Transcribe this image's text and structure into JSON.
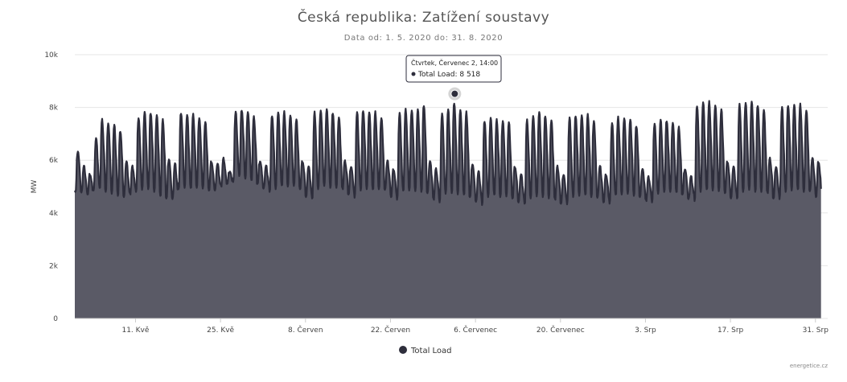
{
  "header": {
    "title": "Česká republika: Zatížení soustavy",
    "subtitle": "Data od: 1. 5. 2020 do: 31. 8. 2020"
  },
  "credit": "energetice.cz",
  "legend": {
    "label": "Total Load"
  },
  "tooltip": {
    "line1": "Čtvrtek, Červenec 2, 14:00",
    "line2": "Total Load: 8 518"
  },
  "colors": {
    "series_fill": "#5a5a66",
    "series_line": "#2e2e3c",
    "grid": "#e6e6e6",
    "axis": "#cccccc"
  },
  "chart_data": {
    "type": "area",
    "title": "Česká republika: Zatížení soustavy",
    "subtitle": "Data od: 1. 5. 2020 do: 31. 8. 2020",
    "ylabel": "MW",
    "ylim": [
      0,
      10000
    ],
    "y_ticks": [
      0,
      2000,
      4000,
      6000,
      8000,
      10000
    ],
    "y_tick_labels": [
      "0",
      "2k",
      "4k",
      "6k",
      "8k",
      "10k"
    ],
    "x_start": "2020-05-01",
    "x_end": "2020-08-31",
    "x_ticks": [
      "2020-05-11",
      "2020-05-25",
      "2020-06-08",
      "2020-06-22",
      "2020-07-06",
      "2020-07-20",
      "2020-08-03",
      "2020-08-17",
      "2020-08-31"
    ],
    "x_tick_labels": [
      "11. Kvě",
      "25. Kvě",
      "8. Červen",
      "22. Červen",
      "6. Červenec",
      "20. Červenec",
      "3. Srp",
      "17. Srp",
      "31. Srp"
    ],
    "legend": "bottom-center",
    "grid": true,
    "highlight": {
      "date": "2020-07-02",
      "hour": 14,
      "value": 8518
    },
    "series": [
      {
        "name": "Total Load",
        "daily_min": [
          4800,
          4750,
          4700,
          4850,
          4900,
          4800,
          4700,
          4650,
          4600,
          4700,
          4800,
          4850,
          4900,
          4800,
          4600,
          4550,
          4500,
          4900,
          4950,
          4900,
          4950,
          4900,
          4850,
          4850,
          5000,
          5100,
          5150,
          5400,
          5300,
          5200,
          5100,
          4900,
          4800,
          4900,
          5000,
          5000,
          5000,
          4900,
          4600,
          4500,
          4900,
          5000,
          4950,
          4950,
          4900,
          4700,
          4550,
          4850,
          4900,
          4850,
          4900,
          4850,
          4600,
          4500,
          4800,
          4850,
          4800,
          4800,
          4750,
          4500,
          4400,
          4700,
          4750,
          4700,
          4650,
          4600,
          4400,
          4300,
          4600,
          4650,
          4600,
          4600,
          4550,
          4400,
          4300,
          4550,
          4600,
          4600,
          4550,
          4500,
          4350,
          4300,
          4600,
          4650,
          4650,
          4600,
          4550,
          4400,
          4350,
          4650,
          4700,
          4700,
          4650,
          4600,
          4450,
          4400,
          4700,
          4800,
          4800,
          4750,
          4700,
          4500,
          4450,
          4800,
          4850,
          4850,
          4800,
          4750,
          4550,
          4500,
          4800,
          4850,
          4800,
          4800,
          4750,
          4550,
          4500,
          4800,
          4850,
          4850,
          4800,
          4800,
          4600
        ],
        "daily_peak": [
          6400,
          5800,
          5500,
          6900,
          7600,
          7500,
          7400,
          7200,
          6000,
          5800,
          7700,
          7900,
          7900,
          7800,
          7600,
          6100,
          5900,
          7900,
          7800,
          7800,
          7700,
          7500,
          6000,
          5900,
          6100,
          5600,
          7900,
          8000,
          7900,
          7700,
          6000,
          5800,
          7800,
          7900,
          7900,
          7800,
          7600,
          6000,
          5800,
          7900,
          8000,
          8000,
          7900,
          7700,
          6000,
          5800,
          7900,
          8000,
          7900,
          7900,
          7700,
          6000,
          5700,
          7900,
          8000,
          8000,
          8000,
          8200,
          6000,
          5700,
          7900,
          8000,
          8300,
          8000,
          7900,
          5900,
          5600,
          7600,
          7700,
          7600,
          7600,
          7500,
          5800,
          5500,
          7600,
          7800,
          7900,
          7800,
          7600,
          5800,
          5500,
          7700,
          7800,
          7800,
          7800,
          7600,
          5800,
          5500,
          7500,
          7700,
          7700,
          7600,
          7400,
          5700,
          5400,
          7500,
          7600,
          7600,
          7500,
          7300,
          5700,
          5400,
          8200,
          8300,
          8300,
          8200,
          8000,
          6000,
          5800,
          8200,
          8300,
          8300,
          8200,
          8000,
          6100,
          5800,
          8100,
          8200,
          8200,
          8200,
          8000,
          6100,
          6000
        ]
      }
    ]
  }
}
